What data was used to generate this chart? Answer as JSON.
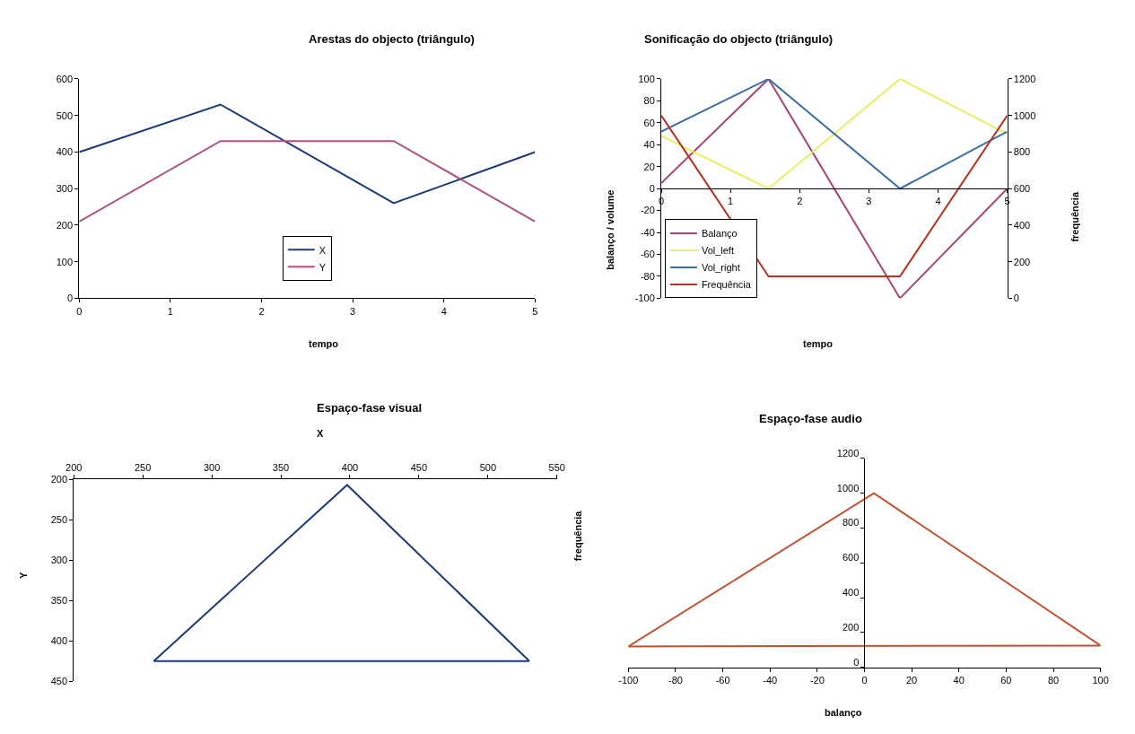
{
  "chart_data": [
    {
      "type": "line",
      "title": "Arestas do objecto (triângulo)",
      "xlabel": "tempo",
      "x": [
        0,
        1.55,
        3.45,
        5
      ],
      "series": [
        {
          "name": "X",
          "color": "#1f3a7a",
          "values": [
            400,
            530,
            260,
            400
          ]
        },
        {
          "name": "Y",
          "color": "#b0507e",
          "values": [
            210,
            430,
            430,
            210
          ]
        }
      ],
      "xlim": [
        0,
        5
      ],
      "xticks": [
        0,
        1,
        2,
        3,
        4,
        5
      ],
      "ylim": [
        0,
        600
      ],
      "yticks": [
        0,
        100,
        200,
        300,
        400,
        500,
        600
      ],
      "grid": false,
      "legend": "bottom",
      "marker": "none"
    },
    {
      "type": "line",
      "title": "Sonificação do objecto (triângulo)",
      "xlabel": "tempo",
      "ylabel": "balanço / volume",
      "y2label": "frequência",
      "x": [
        0,
        1.55,
        3.45,
        5
      ],
      "series": [
        {
          "name": "Balanço",
          "color": "#a8446e",
          "values": [
            5,
            100,
            -100,
            0
          ]
        },
        {
          "name": "Vol_left",
          "color": "#e6ef62",
          "values": [
            48,
            0,
            100,
            50
          ]
        },
        {
          "name": "Vol_right",
          "color": "#3a6ea5",
          "values": [
            52,
            100,
            0,
            52
          ]
        },
        {
          "name": "Frequência",
          "color": "#b83020",
          "values": [
            1000,
            120,
            120,
            1000
          ],
          "axis": "y2"
        }
      ],
      "xlim": [
        0,
        5
      ],
      "xticks": [
        0,
        1,
        2,
        3,
        4,
        5
      ],
      "ylim": [
        -100,
        100
      ],
      "yticks": [
        -100,
        -80,
        -60,
        -40,
        -20,
        0,
        20,
        40,
        60,
        80,
        100
      ],
      "y2lim": [
        0,
        1200
      ],
      "y2ticks": [
        0,
        200,
        400,
        600,
        800,
        1000,
        1200
      ],
      "grid": false,
      "legend": "bottom left",
      "marker": "none"
    },
    {
      "type": "line",
      "title": "Espaço-fase visual",
      "xlabel": "X",
      "ylabel": "Y",
      "series": [
        {
          "color": "#1f3a7a",
          "x": [
            258,
            398,
            530
          ],
          "values": [
            425,
            207,
            425
          ]
        },
        {
          "color": "#1f3a7a",
          "x": [
            258,
            530
          ],
          "values": [
            425,
            425
          ]
        }
      ],
      "xlim": [
        200,
        550
      ],
      "xticks": [
        200,
        250,
        300,
        350,
        400,
        450,
        500,
        550
      ],
      "ylim": [
        450,
        200
      ],
      "yticks": [
        200,
        250,
        300,
        350,
        400,
        450
      ],
      "grid": false,
      "marker": "none"
    },
    {
      "type": "line",
      "title": "Espaço-fase audio",
      "xlabel": "balanço",
      "ylabel": "frequência",
      "series": [
        {
          "color": "#c05030",
          "x": [
            -100,
            4,
            100
          ],
          "values": [
            120,
            1000,
            125
          ]
        },
        {
          "color": "#c05030",
          "x": [
            -100,
            100
          ],
          "values": [
            120,
            125
          ]
        }
      ],
      "xlim": [
        -100,
        100
      ],
      "xticks": [
        -100,
        -80,
        -60,
        -40,
        -20,
        0,
        20,
        40,
        60,
        80,
        100
      ],
      "ylim": [
        0,
        1200
      ],
      "yticks": [
        0,
        200,
        400,
        600,
        800,
        1000,
        1200
      ],
      "grid": false,
      "marker": "none"
    }
  ]
}
